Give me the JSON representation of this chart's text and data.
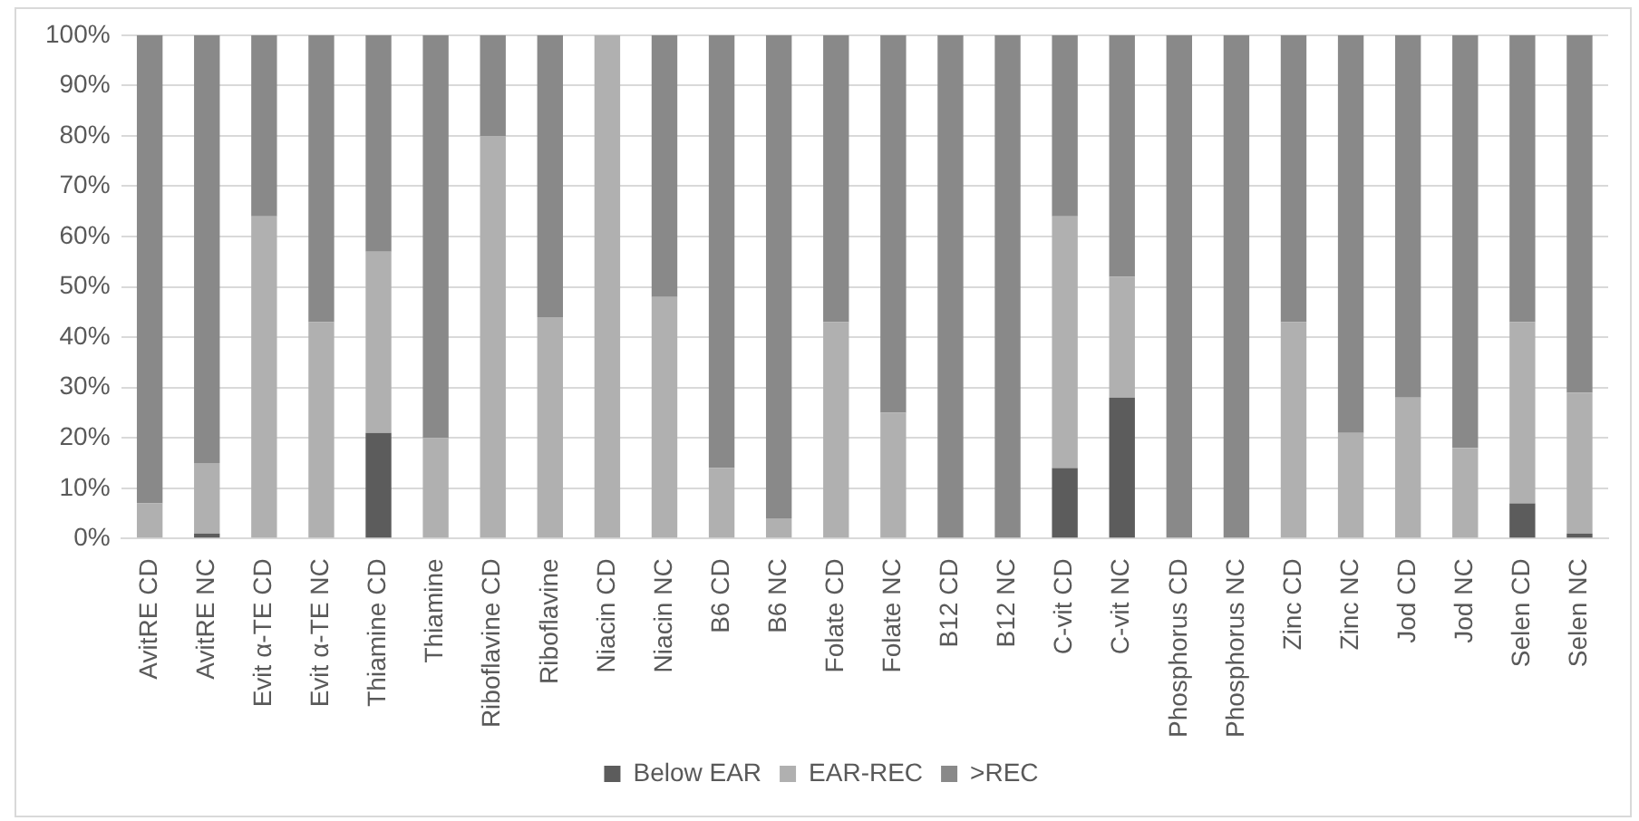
{
  "chart_data": {
    "type": "bar",
    "stacked": true,
    "categories": [
      "AvitRE CD",
      "AvitRE NC",
      "Evit α-TE CD",
      "Evit α-TE NC",
      "Thiamine CD",
      "Thiamine",
      "Riboflavine CD",
      "Riboflavine",
      "Niacin CD",
      "Niacin NC",
      "B6 CD",
      "B6 NC",
      "Folate CD",
      "Folate NC",
      "B12 CD",
      "B12 NC",
      "C-vit CD",
      "C-vit NC",
      "Phosphorus CD",
      "Phosphorus NC",
      "Zinc CD",
      "Zinc NC",
      "Jod CD",
      "Jod NC",
      "Selen CD",
      "Selen NC"
    ],
    "series": [
      {
        "name": "Below EAR",
        "color": "#5c5c5c",
        "values": [
          0,
          1,
          0,
          0,
          21,
          0,
          0,
          0,
          0,
          0,
          0,
          0,
          0,
          0,
          0,
          0,
          14,
          28,
          0,
          0,
          0,
          0,
          0,
          0,
          7,
          1
        ]
      },
      {
        "name": "EAR-REC",
        "color": "#b0b0b0",
        "values": [
          7,
          14,
          64,
          43,
          36,
          20,
          80,
          44,
          100,
          48,
          14,
          4,
          43,
          25,
          0,
          0,
          50,
          24,
          0,
          0,
          43,
          21,
          28,
          18,
          36,
          28
        ]
      },
      {
        "name": ">REC",
        "color": "#898989",
        "values": [
          93,
          85,
          36,
          57,
          43,
          80,
          20,
          56,
          0,
          52,
          86,
          96,
          57,
          75,
          100,
          100,
          36,
          48,
          100,
          100,
          57,
          79,
          72,
          82,
          57,
          71
        ]
      }
    ],
    "ylim": [
      0,
      100
    ],
    "yticks": [
      {
        "value": 0,
        "label": "0%"
      },
      {
        "value": 10,
        "label": "10%"
      },
      {
        "value": 20,
        "label": "20%"
      },
      {
        "value": 30,
        "label": "30%"
      },
      {
        "value": 40,
        "label": "40%"
      },
      {
        "value": 50,
        "label": "50%"
      },
      {
        "value": 60,
        "label": "60%"
      },
      {
        "value": 70,
        "label": "70%"
      },
      {
        "value": 80,
        "label": "80%"
      },
      {
        "value": 90,
        "label": "90%"
      },
      {
        "value": 100,
        "label": "100%"
      }
    ],
    "grid": "y",
    "legend": "bottom"
  }
}
